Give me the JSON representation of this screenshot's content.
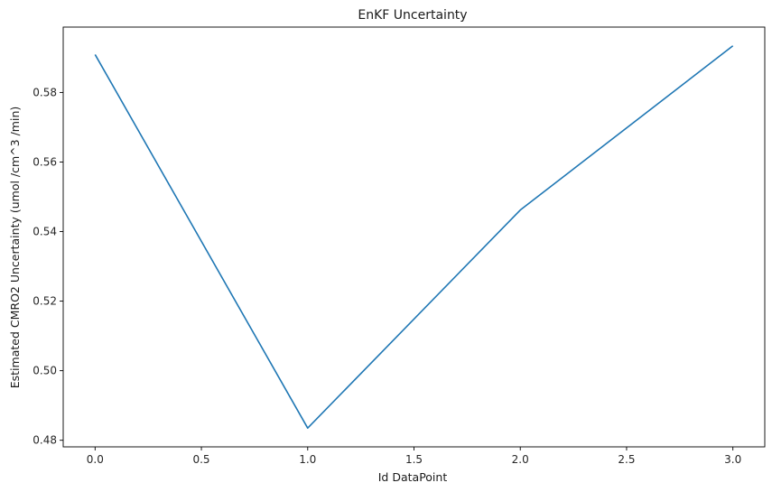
{
  "chart_data": {
    "type": "line",
    "title": "EnKF Uncertainty",
    "xlabel": "Id DataPoint",
    "ylabel": "Estimated CMRO2 Uncertainty (umol /cm^3 /min)",
    "x": [
      0,
      1,
      2,
      3
    ],
    "series": [
      {
        "values": [
          0.5909,
          0.4835,
          0.5462,
          0.5934
        ],
        "color": "#1f77b4"
      }
    ],
    "xlim": [
      -0.15,
      3.15
    ],
    "ylim": [
      0.4781,
      0.5988
    ],
    "xticks": [
      0.0,
      0.5,
      1.0,
      1.5,
      2.0,
      2.5,
      3.0
    ],
    "xtick_labels": [
      "0.0",
      "0.5",
      "1.0",
      "1.5",
      "2.0",
      "2.5",
      "3.0"
    ],
    "yticks": [
      0.48,
      0.5,
      0.52,
      0.54,
      0.56,
      0.58
    ],
    "ytick_labels": [
      "0.48",
      "0.50",
      "0.52",
      "0.54",
      "0.56",
      "0.58"
    ],
    "grid": false,
    "legend": false
  }
}
